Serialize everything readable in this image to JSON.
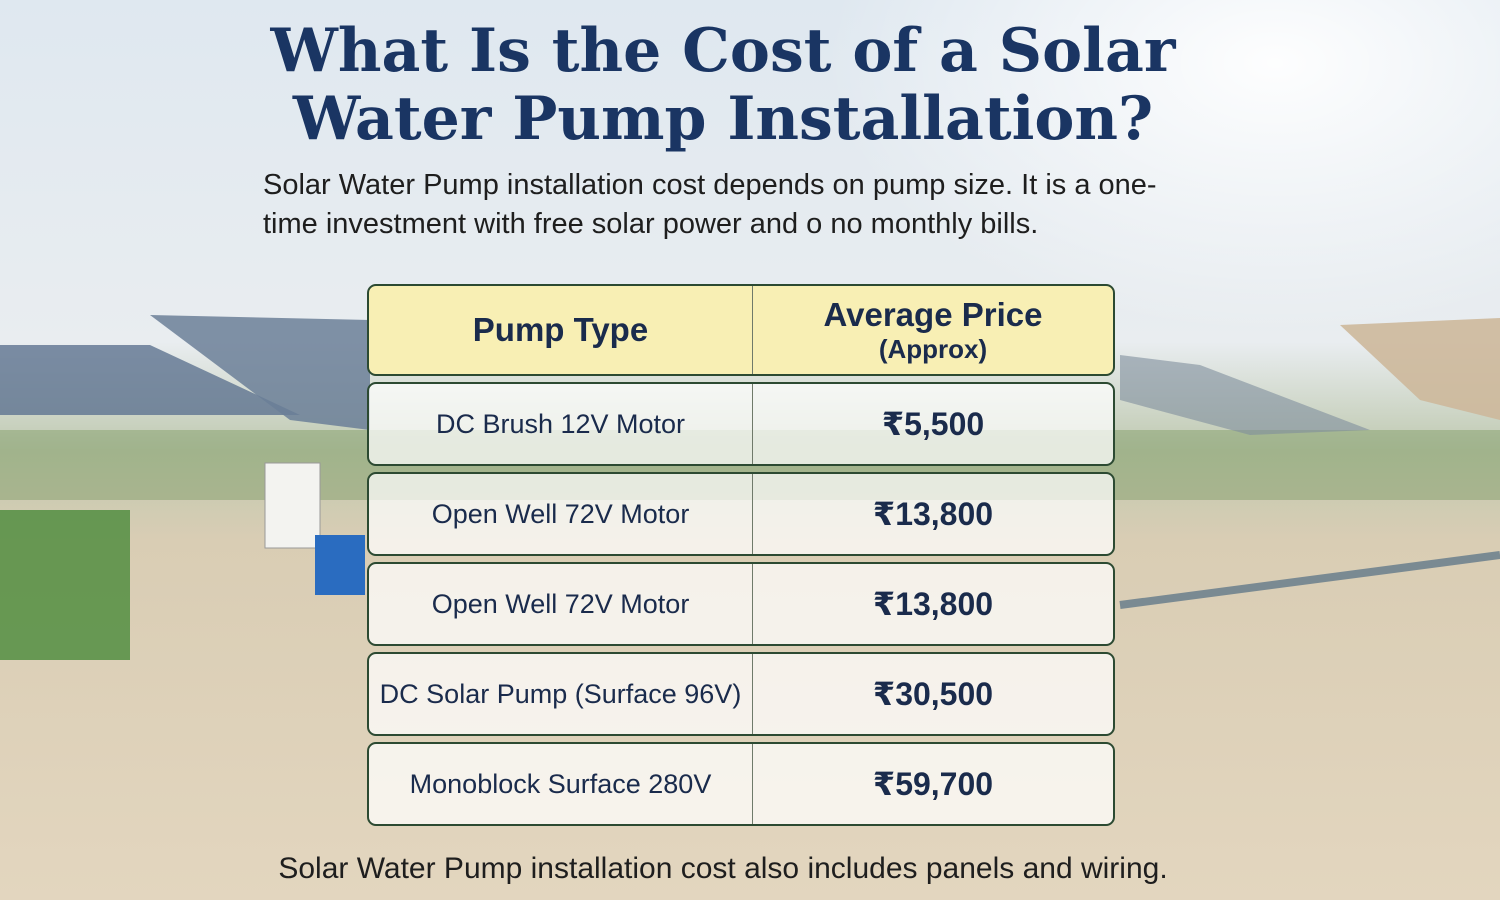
{
  "header": {
    "title_lines": [
      "What Is the Cost of a Solar",
      "Water Pump Installation?"
    ],
    "subtitle": "Solar Water Pump installation cost depends on pump size.  It is a one-time investment with free solar power and o no monthly bills."
  },
  "table": {
    "columns": [
      {
        "label": "Pump Type"
      },
      {
        "label": "Average Price",
        "sublabel": "(Approx)"
      }
    ],
    "rows": [
      [
        "DC Brush 12V Motor",
        "₹5,500"
      ],
      [
        "Open Well 72V Motor",
        "₹13,800"
      ],
      [
        "Open Well 72V Motor",
        "₹13,800"
      ],
      [
        "DC Solar Pump (Surface 96V)",
        "₹30,500"
      ],
      [
        "Monoblock Surface 280V",
        "₹59,700"
      ]
    ]
  },
  "footer": "Solar Water Pump installation cost also includes panels and wiring."
}
